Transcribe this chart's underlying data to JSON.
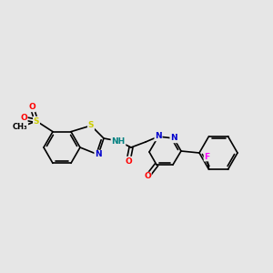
{
  "bg_color": "#e6e6e6",
  "bond_color": "#000000",
  "bond_width": 1.2,
  "atom_colors": {
    "S": "#cccc00",
    "N": "#0000cd",
    "O": "#ff0000",
    "F": "#ff00ff",
    "NH": "#008080",
    "C": "#000000"
  },
  "font_size": 6.5,
  "figsize": [
    3.0,
    3.0
  ],
  "dpi": 100,
  "xlim": [
    0,
    300
  ],
  "ylim": [
    0,
    300
  ]
}
